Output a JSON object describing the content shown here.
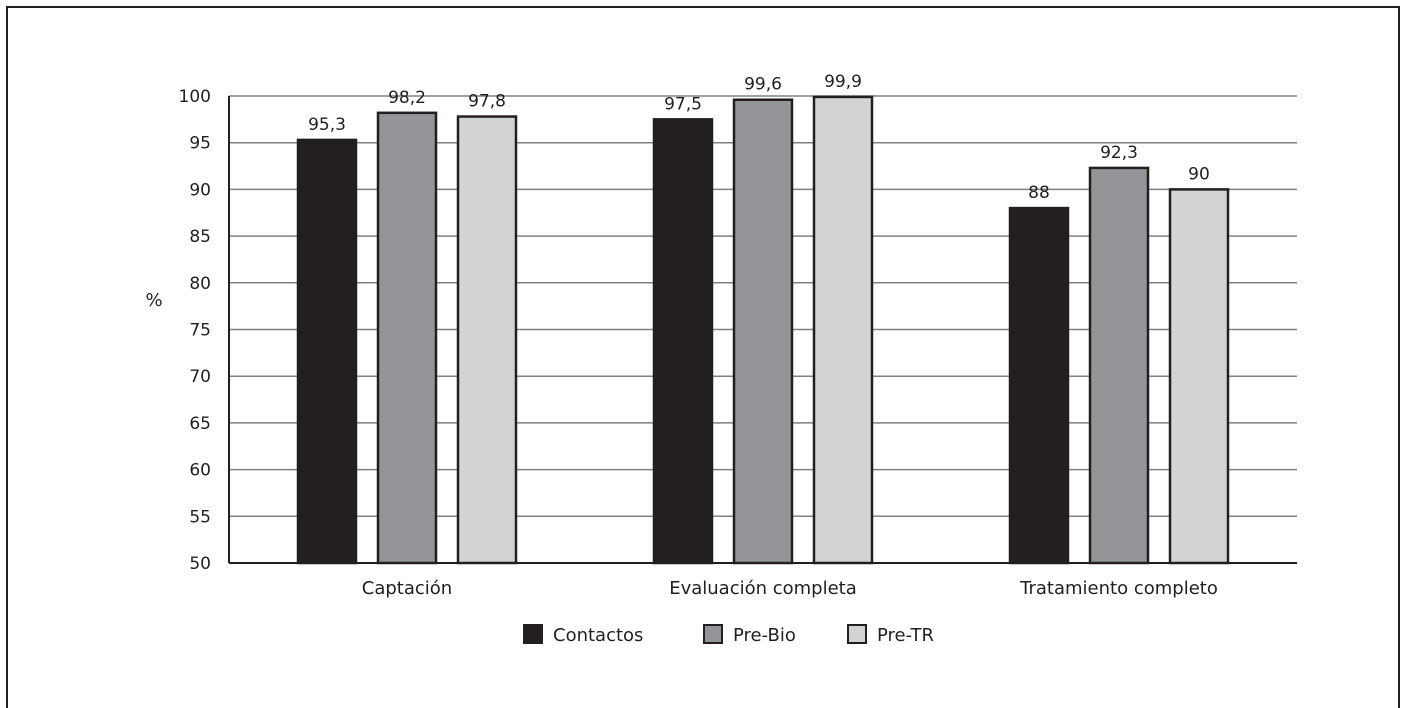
{
  "chart_data": {
    "type": "bar",
    "categories": [
      "Captación",
      "Evaluación completa",
      "Tratamiento completo"
    ],
    "series": [
      {
        "name": "Contactos",
        "values": [
          95.3,
          97.5,
          88
        ],
        "labels": [
          "95,3",
          "97,5",
          "88"
        ],
        "color": "#231f20"
      },
      {
        "name": "Pre-Bio",
        "values": [
          98.2,
          99.6,
          92.3
        ],
        "labels": [
          "98,2",
          "99,6",
          "92,3"
        ],
        "color": "#939598"
      },
      {
        "name": "Pre-TR",
        "values": [
          97.8,
          99.9,
          90
        ],
        "labels": [
          "97,8",
          "99,9",
          "90"
        ],
        "color": "#d1d3d4"
      }
    ],
    "ylabel": "%",
    "ylim": [
      50,
      100
    ],
    "yticks": [
      50,
      55,
      60,
      65,
      70,
      75,
      80,
      85,
      90,
      95,
      100
    ],
    "grid": true,
    "legend_position": "bottom-center",
    "colors": {
      "axis": "#231f20",
      "grid": "#808285",
      "bar_outline": "#231f20"
    }
  }
}
